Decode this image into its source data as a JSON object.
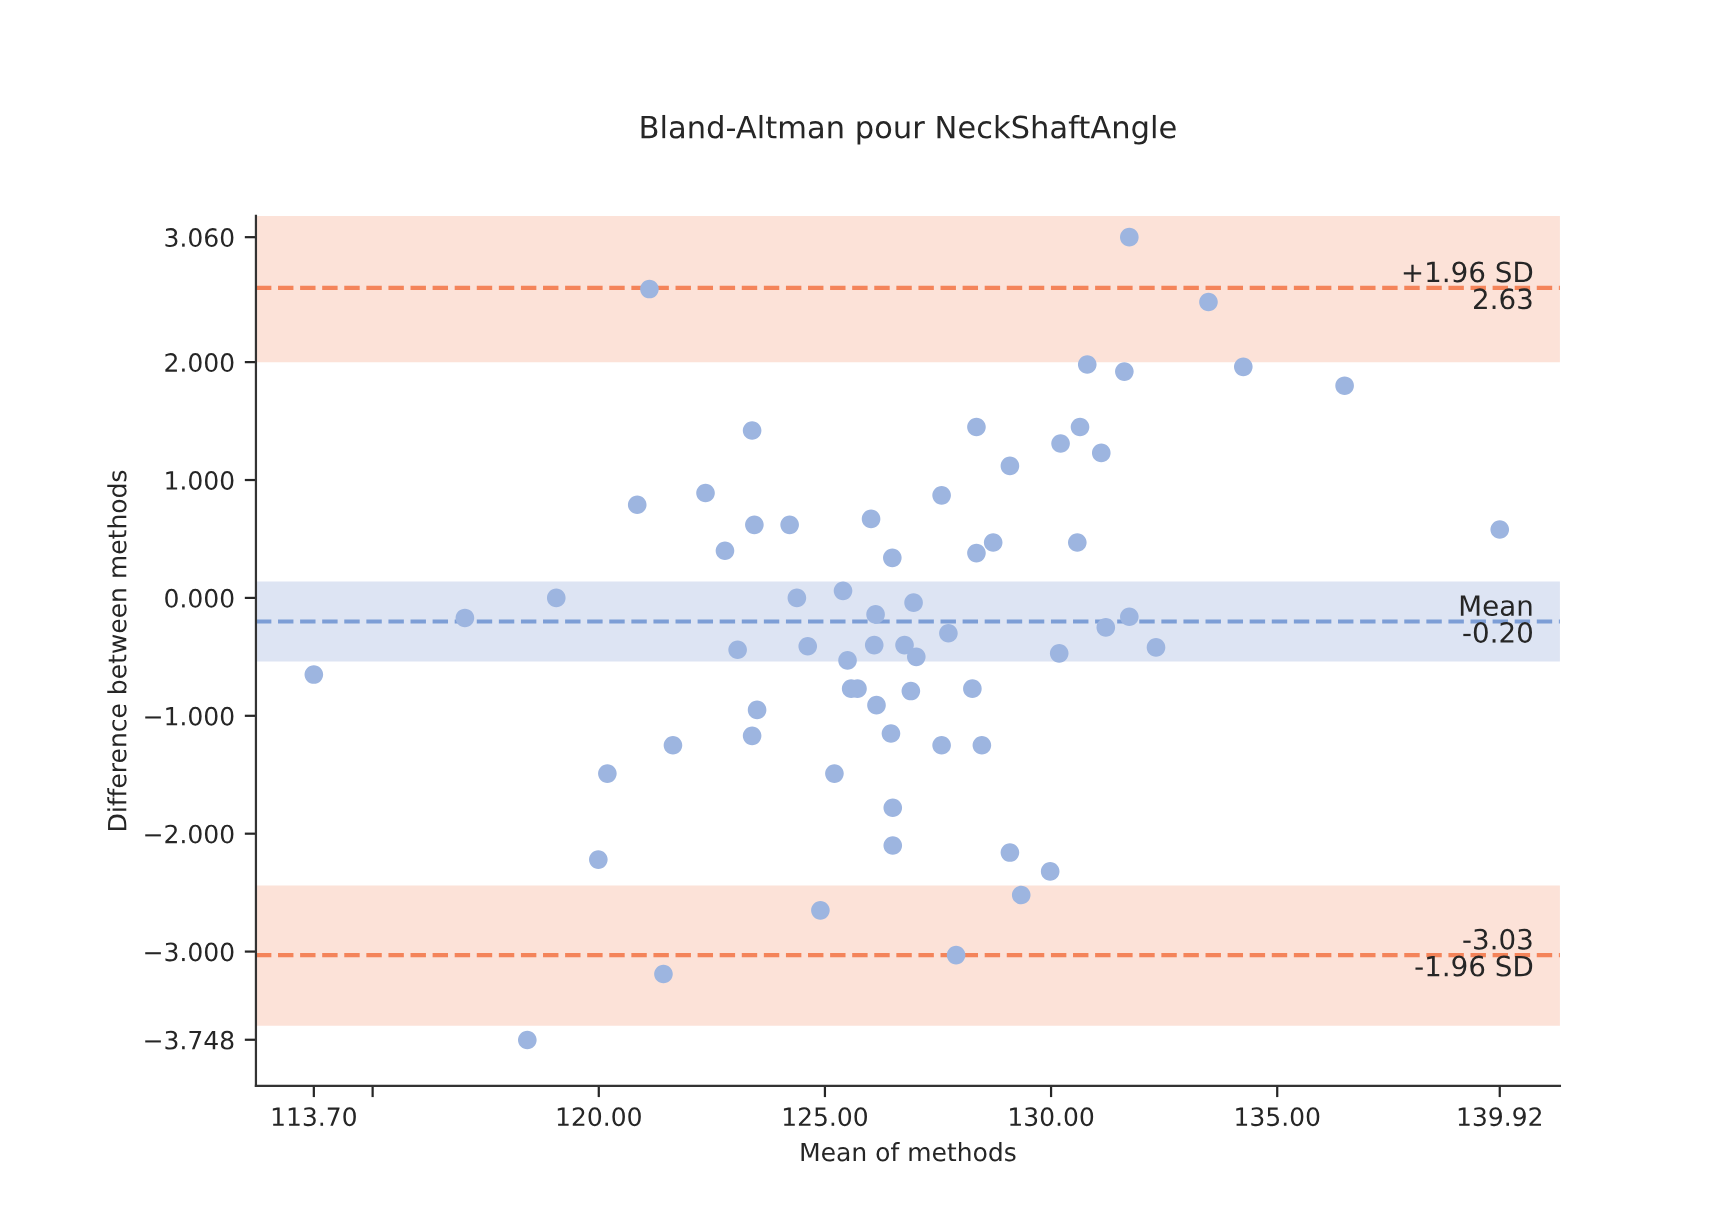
{
  "chart_data": {
    "type": "scatter",
    "title": "Bland-Altman pour NeckShaftAngle",
    "xlabel": "Mean of methods",
    "ylabel": "Difference between methods",
    "x": [
      121.12,
      123.39,
      120.85,
      122.36,
      123.44,
      124.22,
      122.79,
      126.02,
      126.49,
      119.06,
      117.04,
      124.38,
      125.4,
      126.12,
      126.96,
      123.07,
      124.62,
      126.09,
      126.76,
      125.5,
      131.73,
      133.48,
      130.8,
      131.62,
      134.25,
      136.49,
      128.35,
      130.21,
      130.64,
      131.11,
      129.09,
      127.58,
      139.92,
      128.35,
      128.72,
      130.58,
      127.73,
      131.73,
      131.21,
      130.18,
      132.32,
      127.02,
      113.7,
      125.58,
      125.72,
      126.9,
      126.14,
      123.5,
      123.39,
      126.46,
      121.64,
      120.19,
      125.21,
      126.5,
      126.5,
      119.99,
      124.9,
      121.43,
      118.42,
      128.26,
      127.58,
      128.47,
      129.09,
      129.98,
      129.34,
      127.9
    ],
    "series": [
      {
        "color": "#9db5e0",
        "values": [
          2.62,
          1.42,
          0.79,
          0.89,
          0.62,
          0.62,
          0.4,
          0.67,
          0.34,
          0.0,
          -0.17,
          0.0,
          0.06,
          -0.14,
          -0.04,
          -0.44,
          -0.41,
          -0.4,
          -0.4,
          -0.53,
          3.06,
          2.51,
          1.98,
          1.92,
          1.96,
          1.8,
          1.45,
          1.31,
          1.45,
          1.23,
          1.12,
          0.87,
          0.58,
          0.38,
          0.47,
          0.47,
          -0.3,
          -0.16,
          -0.25,
          -0.47,
          -0.42,
          -0.5,
          -0.65,
          -0.77,
          -0.77,
          -0.79,
          -0.91,
          -0.95,
          -1.17,
          -1.15,
          -1.25,
          -1.49,
          -1.49,
          -1.78,
          -2.1,
          -2.22,
          -2.65,
          -3.19,
          -3.75,
          -0.77,
          -1.25,
          -1.25,
          -2.16,
          -2.32,
          -2.52,
          -3.03
        ]
      }
    ],
    "xlim": [
      112.42,
      141.25
    ],
    "ylim": [
      -4.14,
      3.24
    ],
    "xticks": [
      {
        "value": 113.7,
        "label": "113.70"
      },
      {
        "value": 115.0,
        "label": null
      },
      {
        "value": 120.0,
        "label": "120.00"
      },
      {
        "value": 125.0,
        "label": "125.00"
      },
      {
        "value": 130.0,
        "label": "130.00"
      },
      {
        "value": 135.0,
        "label": "135.00"
      },
      {
        "value": 139.92,
        "label": "139.92"
      }
    ],
    "yticks": [
      {
        "value": 3.06,
        "label": "3.060"
      },
      {
        "value": 2.0,
        "label": "2.000"
      },
      {
        "value": 1.0,
        "label": "1.000"
      },
      {
        "value": 0.0,
        "label": "0.000"
      },
      {
        "value": -1.0,
        "label": "−1.000"
      },
      {
        "value": -2.0,
        "label": "−2.000"
      },
      {
        "value": -3.0,
        "label": "−3.000"
      },
      {
        "value": -3.748,
        "label": "−3.748"
      }
    ],
    "ref_lines": [
      {
        "axis": "y",
        "value": 2.63,
        "label": "+1.96 SD\n2.63",
        "color": "#f4845a",
        "line_style": "dashed"
      },
      {
        "axis": "y",
        "value": -0.2,
        "label": "Mean\n-0.20",
        "color": "#7d9ed6",
        "line_style": "dashed"
      },
      {
        "axis": "y",
        "value": -3.03,
        "label": "-3.03\n-1.96 SD",
        "color": "#f4845a",
        "line_style": "dashed"
      }
    ],
    "bands": [
      {
        "axis": "y",
        "from": 2.0,
        "to": 3.24,
        "color": "#fce2d8"
      },
      {
        "axis": "y",
        "from": -0.54,
        "to": 0.14,
        "color": "#dde4f3"
      },
      {
        "axis": "y",
        "from": -3.63,
        "to": -2.44,
        "color": "#fce2d8"
      }
    ],
    "marker": "circle",
    "grid": false,
    "legend": false
  }
}
